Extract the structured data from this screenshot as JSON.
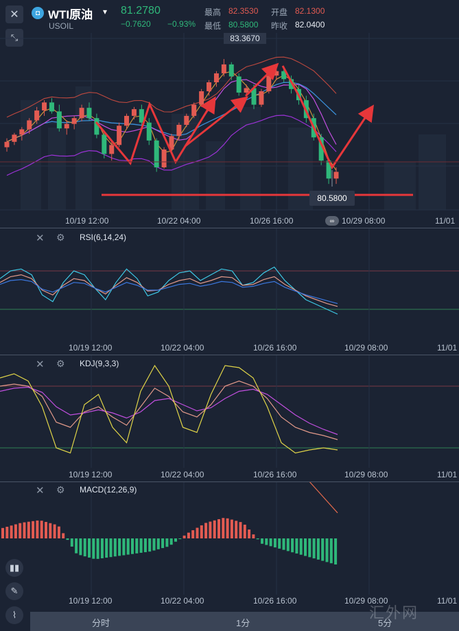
{
  "header": {
    "symbol_name": "WTI原油",
    "symbol_code": "USOIL",
    "last_price": "81.2780",
    "change": "−0.7620",
    "change_pct": "−0.93%",
    "high_label": "最高",
    "high_value": "82.3530",
    "open_label": "开盘",
    "open_value": "82.1300",
    "low_label": "最低",
    "low_value": "80.5800",
    "prev_close_label": "昨收",
    "prev_close_value": "82.0400",
    "close_icon": "close-icon",
    "collapse_icon": "collapse-arrows-icon",
    "dropdown_icon": "caret-down-icon"
  },
  "main_chart": {
    "max_label": "83.3670",
    "min_label": "80.5800",
    "time_labels": [
      "10/19 12:00",
      "10/22 04:00",
      "10/26 16:00",
      "10/29 08:00",
      "11/01"
    ]
  },
  "rsi": {
    "title": "RSI(6,14,24)",
    "time_labels": [
      "10/19 12:00",
      "10/22 04:00",
      "10/26 16:00",
      "10/29 08:00",
      "11/01"
    ]
  },
  "kdj": {
    "title": "KDJ(9,3,3)",
    "time_labels": [
      "10/19 12:00",
      "10/22 04:00",
      "10/26 16:00",
      "10/29 08:00",
      "11/01"
    ]
  },
  "macd": {
    "title": "MACD(12,26,9)",
    "time_labels": [
      "10/19 12:00",
      "10/22 04:00",
      "10/26 16:00",
      "10/29 08:00",
      "11/01"
    ]
  },
  "toolbar": {
    "tabs": [
      "分时",
      "1分",
      "5分"
    ]
  },
  "watermark": "汇外网",
  "colors": {
    "up": "#e25b52",
    "down": "#2fb87a",
    "bg": "#1b2333",
    "annotation": "#e6373a"
  },
  "chart_data": [
    {
      "type": "candlestick",
      "title": "WTI原油",
      "x": [
        "10/19 12:00",
        "10/22 04:00",
        "10/26 16:00",
        "10/29 08:00",
        "11/01"
      ],
      "ylim": [
        80.0,
        83.8
      ],
      "high_marker": 83.367,
      "low_marker": 80.58,
      "candles": [
        [
          81.4,
          81.6,
          81.3,
          81.52
        ],
        [
          81.52,
          81.72,
          81.45,
          81.68
        ],
        [
          81.68,
          81.85,
          81.55,
          81.8
        ],
        [
          81.8,
          82.05,
          81.7,
          82.0
        ],
        [
          82.0,
          82.3,
          81.92,
          82.22
        ],
        [
          82.22,
          82.45,
          82.1,
          82.4
        ],
        [
          82.4,
          82.5,
          82.15,
          82.2
        ],
        [
          82.2,
          82.35,
          81.75,
          81.82
        ],
        [
          81.82,
          82.0,
          81.68,
          81.92
        ],
        [
          81.92,
          82.1,
          81.8,
          82.05
        ],
        [
          82.05,
          82.35,
          81.98,
          82.28
        ],
        [
          82.28,
          82.4,
          82.0,
          82.05
        ],
        [
          82.05,
          82.15,
          81.6,
          81.68
        ],
        [
          81.68,
          81.78,
          81.15,
          81.25
        ],
        [
          81.25,
          81.55,
          81.1,
          81.45
        ],
        [
          81.45,
          81.95,
          81.4,
          81.88
        ],
        [
          81.88,
          82.15,
          81.8,
          82.1
        ],
        [
          82.1,
          82.3,
          82.02,
          82.25
        ],
        [
          82.25,
          82.35,
          81.9,
          81.95
        ],
        [
          81.95,
          82.05,
          81.45,
          81.55
        ],
        [
          81.55,
          81.6,
          80.85,
          80.95
        ],
        [
          80.95,
          81.4,
          80.92,
          81.35
        ],
        [
          81.35,
          81.7,
          81.3,
          81.65
        ],
        [
          81.65,
          81.95,
          81.55,
          81.9
        ],
        [
          81.9,
          82.15,
          81.85,
          82.1
        ],
        [
          82.1,
          82.4,
          82.05,
          82.35
        ],
        [
          82.35,
          82.7,
          82.3,
          82.65
        ],
        [
          82.65,
          82.9,
          82.55,
          82.85
        ],
        [
          82.85,
          83.1,
          82.75,
          83.05
        ],
        [
          83.05,
          83.37,
          82.98,
          83.25
        ],
        [
          83.25,
          83.3,
          82.9,
          82.98
        ],
        [
          82.98,
          83.05,
          82.55,
          82.62
        ],
        [
          82.62,
          82.8,
          82.5,
          82.72
        ],
        [
          82.72,
          82.8,
          82.25,
          82.35
        ],
        [
          82.35,
          82.7,
          82.3,
          82.65
        ],
        [
          82.65,
          83.05,
          82.6,
          83.0
        ],
        [
          83.0,
          83.2,
          82.9,
          83.1
        ],
        [
          83.1,
          83.15,
          82.85,
          82.92
        ],
        [
          82.92,
          83.0,
          82.6,
          82.7
        ],
        [
          82.7,
          82.8,
          82.35,
          82.45
        ],
        [
          82.45,
          82.55,
          81.95,
          82.05
        ],
        [
          82.05,
          82.15,
          81.55,
          81.62
        ],
        [
          81.62,
          81.7,
          81.0,
          81.1
        ],
        [
          81.1,
          81.15,
          80.58,
          80.7
        ],
        [
          80.7,
          80.95,
          80.58,
          80.85
        ]
      ],
      "overlays": [
        "MA5",
        "MA10",
        "MA20",
        "Bollinger upper",
        "Bollinger lower"
      ],
      "annotations": [
        "zigzag arrows",
        "support line at 80.58"
      ]
    },
    {
      "type": "line",
      "title": "RSI(6,14,24)",
      "series": [
        {
          "name": "RSI6",
          "values": [
            62,
            70,
            72,
            66,
            45,
            38,
            58,
            70,
            66,
            52,
            40,
            58,
            72,
            62,
            44,
            48,
            60,
            68,
            70,
            60,
            66,
            72,
            70,
            55,
            58,
            68,
            74,
            60,
            50,
            40,
            35,
            30,
            25
          ]
        },
        {
          "name": "RSI14",
          "values": [
            58,
            64,
            66,
            62,
            50,
            45,
            55,
            62,
            60,
            52,
            46,
            55,
            63,
            58,
            49,
            50,
            56,
            60,
            62,
            57,
            60,
            64,
            63,
            55,
            56,
            61,
            64,
            56,
            50,
            44,
            40,
            36,
            33
          ]
        },
        {
          "name": "RSI24",
          "values": [
            56,
            60,
            61,
            59,
            51,
            48,
            53,
            58,
            57,
            52,
            48,
            53,
            58,
            55,
            50,
            50,
            53,
            56,
            57,
            54,
            56,
            59,
            58,
            53,
            54,
            57,
            59,
            53,
            49,
            45,
            42,
            39,
            36
          ]
        }
      ],
      "ylim": [
        0,
        100
      ]
    },
    {
      "type": "line",
      "title": "KDJ(9,3,3)",
      "series": [
        {
          "name": "K",
          "values": [
            80,
            82,
            80,
            70,
            45,
            40,
            55,
            60,
            50,
            42,
            60,
            78,
            70,
            55,
            50,
            62,
            80,
            85,
            80,
            68,
            50,
            40,
            35,
            32,
            28
          ]
        },
        {
          "name": "D",
          "values": [
            75,
            78,
            79,
            74,
            60,
            52,
            54,
            57,
            54,
            49,
            55,
            66,
            68,
            62,
            56,
            59,
            68,
            75,
            77,
            72,
            62,
            52,
            44,
            38,
            33
          ]
        },
        {
          "name": "J",
          "values": [
            88,
            92,
            85,
            60,
            20,
            15,
            62,
            72,
            40,
            25,
            75,
            100,
            80,
            40,
            35,
            72,
            100,
            98,
            88,
            60,
            25,
            15,
            18,
            20,
            18
          ]
        }
      ],
      "ylim": [
        0,
        110
      ]
    },
    {
      "type": "bar",
      "title": "MACD(12,26,9)",
      "series": [
        {
          "name": "DIF",
          "values": [
            0.3,
            0.34,
            0.36,
            0.32,
            0.24,
            0.2,
            0.18,
            0.16,
            0.14,
            0.12,
            0.16,
            0.22,
            0.28,
            0.26,
            0.22,
            0.18,
            0.1,
            0.02,
            -0.06
          ]
        },
        {
          "name": "DEA",
          "values": [
            0.28,
            0.3,
            0.32,
            0.32,
            0.3,
            0.27,
            0.24,
            0.21,
            0.18,
            0.16,
            0.16,
            0.18,
            0.21,
            0.23,
            0.23,
            0.22,
            0.19,
            0.15,
            0.1
          ]
        },
        {
          "name": "MACD",
          "values": [
            0.04,
            0.06,
            0.07,
            0.05,
            -0.06,
            -0.08,
            -0.07,
            -0.06,
            -0.05,
            -0.03,
            0.02,
            0.06,
            0.08,
            0.06,
            -0.02,
            -0.04,
            -0.06,
            -0.08,
            -0.1
          ]
        }
      ]
    }
  ]
}
